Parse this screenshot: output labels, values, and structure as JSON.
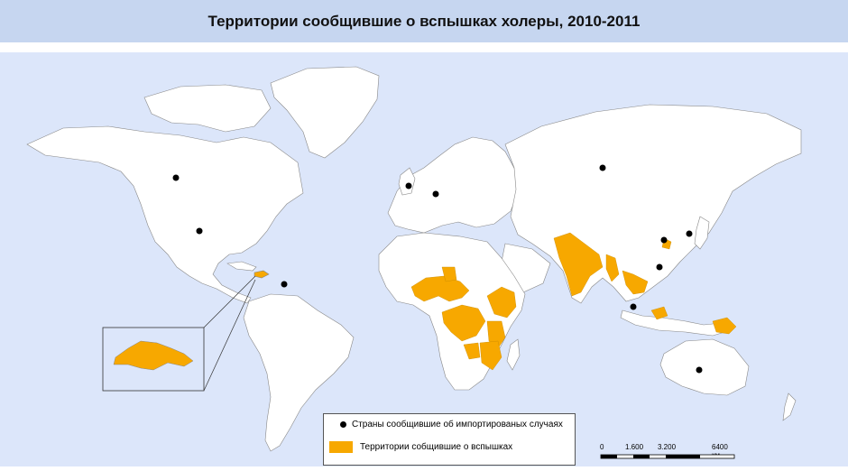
{
  "title": "Территории сообщившие о вспышках холеры, 2010-2011",
  "legend": {
    "imported_label": "Страны сообщившие об импортированых случаях",
    "outbreak_label": "Территории собщившие о вспышках"
  },
  "scale_bar": {
    "labels": [
      "0",
      "1.600",
      "3.200",
      "6400 км"
    ]
  },
  "colors": {
    "ocean": "#dce6fa",
    "land": "#ffffff",
    "outbreak": "#f7a800",
    "imported_marker": "#000000",
    "title_bar": "#c6d6f0"
  },
  "imported_case_countries": [
    "Canada",
    "USA",
    "Dominican Republic (Caribbean)",
    "United Kingdom",
    "Germany",
    "Russia",
    "China",
    "Japan",
    "Viet Nam",
    "Malaysia",
    "Australia"
  ],
  "outbreak_regions": [
    "Haiti",
    "Dominican Republic",
    "Nigeria",
    "Niger",
    "Chad",
    "Cameroon",
    "Ethiopia",
    "Somalia",
    "Kenya",
    "DR Congo",
    "Uganda",
    "Tanzania",
    "Mozambique",
    "Zambia",
    "Malawi",
    "India",
    "Nepal",
    "Bangladesh",
    "Myanmar",
    "Thailand",
    "Cambodia",
    "Indonesia",
    "Papua New Guinea",
    "China"
  ]
}
